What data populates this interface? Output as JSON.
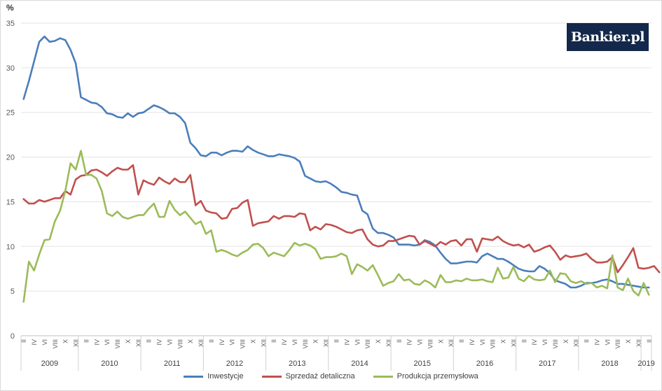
{
  "chart_data": {
    "type": "line",
    "title": "",
    "ylabel": "%",
    "xlabel": "",
    "ylim": [
      0,
      35
    ],
    "yticks": [
      0,
      5,
      10,
      15,
      20,
      25,
      30,
      35
    ],
    "grid": true,
    "legend_position": "bottom",
    "start": "2009-02",
    "x_tick_months": [
      "II",
      "IV",
      "VI",
      "VIII",
      "X",
      "XII"
    ],
    "years": [
      "2009",
      "2010",
      "2011",
      "2012",
      "2013",
      "2014",
      "2015",
      "2016",
      "2017",
      "2018",
      "2019"
    ],
    "series": [
      {
        "name": "Inwestycje",
        "color": "#4a7ebb",
        "values": [
          26.5,
          28.5,
          30.7,
          32.9,
          33.5,
          32.9,
          33.0,
          33.3,
          33.1,
          32.0,
          30.5,
          26.7,
          26.4,
          26.1,
          26.0,
          25.6,
          24.9,
          24.8,
          24.5,
          24.4,
          24.9,
          24.5,
          24.9,
          25.0,
          25.4,
          25.8,
          25.6,
          25.3,
          24.9,
          24.9,
          24.5,
          23.8,
          21.6,
          21.0,
          20.2,
          20.1,
          20.5,
          20.5,
          20.2,
          20.5,
          20.7,
          20.7,
          20.6,
          21.2,
          20.8,
          20.5,
          20.3,
          20.1,
          20.1,
          20.3,
          20.2,
          20.1,
          19.9,
          19.5,
          17.9,
          17.6,
          17.3,
          17.2,
          17.3,
          17.0,
          16.6,
          16.1,
          16.0,
          15.8,
          15.7,
          14.0,
          13.6,
          12.0,
          11.5,
          11.5,
          11.3,
          11.0,
          10.2,
          10.2,
          10.2,
          10.1,
          10.2,
          10.7,
          10.5,
          10.1,
          9.3,
          8.6,
          8.1,
          8.1,
          8.2,
          8.3,
          8.3,
          8.2,
          8.9,
          9.2,
          8.9,
          8.6,
          8.6,
          8.3,
          7.9,
          7.5,
          7.3,
          7.2,
          7.2,
          7.8,
          7.5,
          7.0,
          6.2,
          6.0,
          5.8,
          5.4,
          5.4,
          5.6,
          5.9,
          5.9,
          6.0,
          6.2,
          6.3,
          6.1,
          5.8,
          5.8,
          5.7,
          5.6,
          5.5,
          5.4,
          5.4
        ]
      },
      {
        "name": "Sprzedaż detaliczna",
        "color": "#c0504d",
        "values": [
          15.3,
          14.8,
          14.8,
          15.2,
          15.0,
          15.2,
          15.4,
          15.4,
          16.2,
          15.8,
          17.5,
          17.9,
          18.0,
          18.5,
          18.6,
          18.3,
          17.9,
          18.4,
          18.8,
          18.6,
          18.6,
          19.1,
          15.8,
          17.4,
          17.1,
          16.9,
          17.7,
          17.3,
          17.0,
          17.6,
          17.2,
          17.2,
          18.0,
          14.6,
          15.1,
          14.0,
          13.8,
          13.7,
          13.1,
          13.2,
          14.2,
          14.3,
          14.9,
          15.2,
          12.3,
          12.6,
          12.7,
          12.8,
          13.4,
          13.1,
          13.4,
          13.4,
          13.3,
          13.7,
          13.6,
          11.8,
          12.2,
          11.9,
          12.5,
          12.4,
          12.2,
          11.9,
          11.6,
          11.5,
          11.8,
          11.9,
          10.8,
          10.2,
          10.0,
          10.1,
          10.6,
          10.6,
          10.8,
          11.0,
          11.2,
          11.1,
          10.2,
          10.6,
          10.3,
          10.0,
          10.5,
          10.2,
          10.6,
          10.7,
          10.1,
          10.8,
          10.8,
          9.4,
          10.9,
          10.8,
          10.7,
          11.1,
          10.6,
          10.3,
          10.1,
          10.2,
          9.9,
          10.2,
          9.4,
          9.6,
          9.9,
          10.1,
          9.4,
          8.5,
          9.0,
          8.8,
          8.9,
          9.0,
          9.2,
          8.6,
          8.2,
          8.2,
          8.3,
          8.8,
          7.1,
          7.9,
          8.8,
          9.8,
          7.6,
          7.5,
          7.6,
          7.8,
          7.1
        ]
      },
      {
        "name": "Produkcja przemysłowa",
        "color": "#9bbb59",
        "values": [
          3.8,
          8.3,
          7.3,
          9.1,
          10.7,
          10.8,
          12.8,
          14.0,
          16.2,
          19.3,
          18.6,
          20.7,
          18.0,
          18.0,
          17.6,
          16.2,
          13.7,
          13.4,
          13.9,
          13.3,
          13.1,
          13.3,
          13.5,
          13.5,
          14.2,
          14.8,
          13.3,
          13.3,
          15.1,
          14.1,
          13.5,
          13.9,
          13.2,
          12.5,
          12.8,
          11.4,
          11.8,
          9.4,
          9.6,
          9.4,
          9.1,
          8.9,
          9.3,
          9.6,
          10.2,
          10.3,
          9.8,
          8.9,
          9.3,
          9.1,
          8.9,
          9.6,
          10.4,
          10.1,
          10.3,
          10.1,
          9.7,
          8.6,
          8.8,
          8.8,
          8.9,
          9.2,
          8.9,
          6.9,
          8.0,
          7.7,
          7.3,
          7.9,
          6.8,
          5.6,
          5.9,
          6.1,
          6.9,
          6.2,
          6.3,
          5.8,
          5.7,
          6.2,
          5.9,
          5.4,
          6.8,
          6.0,
          6.0,
          6.2,
          6.1,
          6.4,
          6.2,
          6.2,
          6.3,
          6.1,
          6.0,
          7.6,
          6.4,
          6.5,
          7.7,
          6.4,
          6.1,
          6.7,
          6.3,
          6.2,
          6.3,
          7.3,
          6.0,
          7.0,
          6.9,
          6.1,
          5.9,
          6.1,
          5.8,
          5.9,
          5.4,
          5.6,
          5.3,
          9.0,
          5.4,
          5.1,
          6.4,
          5.0,
          4.5,
          5.9,
          4.6
        ]
      }
    ]
  },
  "logo": {
    "text": "Bankier.pl"
  },
  "y_unit": "%"
}
